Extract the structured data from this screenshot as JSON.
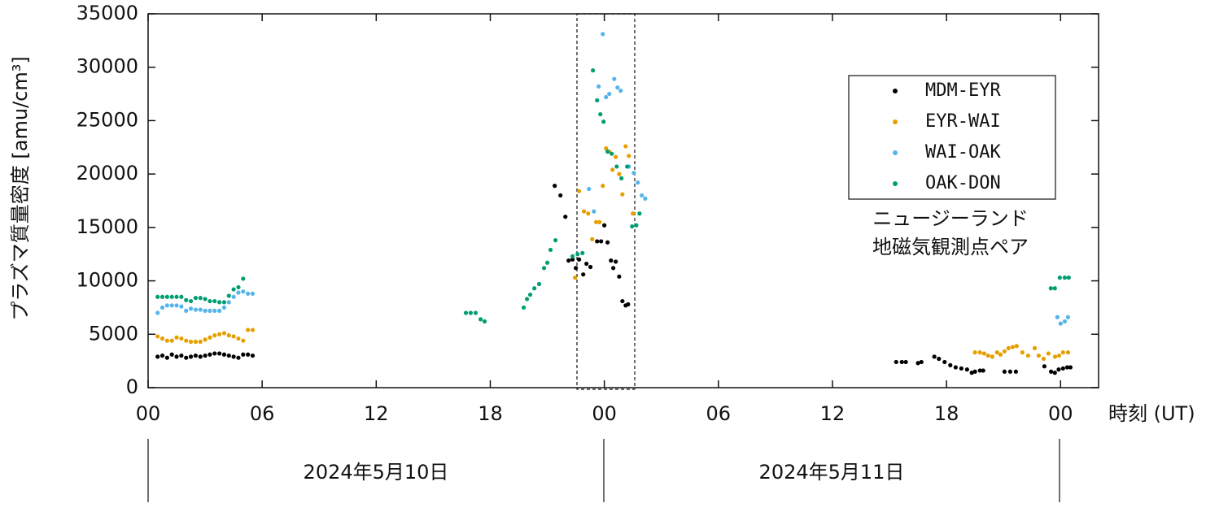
{
  "chart_data": {
    "type": "scatter",
    "y_label": "プラズマ質量密度 [amu/cm³]",
    "x_label": "時刻 (UT)",
    "date_labels": [
      "2024年5月10日",
      "2024年5月11日"
    ],
    "annotation_lines": [
      "ニュージーランド",
      "地磁気観測点ペア"
    ],
    "legend": "upper right",
    "xlim": [
      0,
      50
    ],
    "ylim": [
      0,
      35000
    ],
    "xticks": [
      {
        "value": 0,
        "label": "00"
      },
      {
        "value": 6,
        "label": "06"
      },
      {
        "value": 12,
        "label": "12"
      },
      {
        "value": 18,
        "label": "18"
      },
      {
        "value": 24,
        "label": "00"
      },
      {
        "value": 30,
        "label": "06"
      },
      {
        "value": 36,
        "label": "12"
      },
      {
        "value": 42,
        "label": "18"
      },
      {
        "value": 48,
        "label": "00"
      }
    ],
    "yticks": [
      0,
      5000,
      10000,
      15000,
      20000,
      25000,
      30000,
      35000
    ],
    "series": [
      {
        "name": "MDM-EYR",
        "color": "#000000",
        "x": [
          0.5,
          0.75,
          1,
          1.25,
          1.5,
          1.75,
          2,
          2.25,
          2.5,
          2.75,
          3,
          3.25,
          3.5,
          3.75,
          4,
          4.25,
          4.5,
          4.75,
          5,
          5.25,
          5.5,
          21.39,
          21.69,
          21.95,
          22.12,
          22.33,
          22.5,
          22.67,
          22.89,
          23.06,
          23.27,
          23.62,
          23.83,
          24,
          24.17,
          24.35,
          24.47,
          24.6,
          24.78,
          24.95,
          25.12,
          25.25,
          39.35,
          39.65,
          39.86,
          40.5,
          40.68,
          41.36,
          41.6,
          41.9,
          42.2,
          42.48,
          42.78,
          43.08,
          43.33,
          43.5,
          43.76,
          43.93,
          45.05,
          45.35,
          45.65,
          47.15,
          47.5,
          47.7,
          47.9,
          48.13,
          48.35,
          48.52
        ],
        "values": [
          2900,
          3000,
          2800,
          3100,
          2900,
          3000,
          2800,
          2900,
          3000,
          2900,
          3000,
          3100,
          3200,
          3200,
          3100,
          3000,
          2900,
          2800,
          3100,
          3100,
          3000,
          18900,
          18000,
          16000,
          11900,
          12000,
          11200,
          12000,
          10600,
          11600,
          11300,
          13700,
          13700,
          15200,
          13600,
          11900,
          11200,
          11800,
          10400,
          8100,
          7700,
          7800,
          2400,
          2400,
          2400,
          2300,
          2400,
          2900,
          2700,
          2400,
          2100,
          1900,
          1800,
          1700,
          1400,
          1500,
          1600,
          1600,
          1500,
          1500,
          1500,
          2000,
          1500,
          1400,
          1700,
          1800,
          1900,
          1900
        ]
      },
      {
        "name": "EYR-WAI",
        "color": "#e69f00",
        "x": [
          0.5,
          0.75,
          1,
          1.25,
          1.5,
          1.75,
          2,
          2.25,
          2.5,
          2.75,
          3,
          3.25,
          3.5,
          3.75,
          4,
          4.25,
          4.5,
          4.75,
          5,
          5.25,
          5.5,
          22.46,
          22.67,
          22.93,
          23.15,
          23.36,
          23.57,
          23.75,
          23.92,
          24.09,
          24.26,
          24.43,
          24.6,
          24.78,
          24.95,
          25.12,
          25.29,
          25.5,
          43.5,
          43.76,
          43.98,
          44.19,
          44.41,
          44.66,
          44.84,
          45.05,
          45.26,
          45.48,
          45.69,
          45.99,
          46.29,
          46.64,
          46.85,
          47.11,
          47.36,
          47.71,
          47.92,
          48.13,
          48.39
        ],
        "values": [
          4800,
          4600,
          4400,
          4400,
          4700,
          4600,
          4400,
          4300,
          4300,
          4300,
          4500,
          4700,
          4900,
          5000,
          5100,
          4900,
          4800,
          4600,
          4400,
          5400,
          5400,
          10300,
          18400,
          16500,
          16300,
          13900,
          15500,
          15500,
          18900,
          22400,
          22100,
          20400,
          21600,
          20000,
          18100,
          22600,
          21700,
          16300,
          3300,
          3300,
          3200,
          3000,
          2900,
          3300,
          3100,
          3400,
          3700,
          3800,
          3900,
          3300,
          3000,
          3700,
          3000,
          2700,
          3200,
          2900,
          3000,
          3300,
          3300
        ]
      },
      {
        "name": "WAI-OAK",
        "color": "#56b4e9",
        "x": [
          0.5,
          0.75,
          1,
          1.25,
          1.5,
          1.75,
          2,
          2.25,
          2.5,
          2.75,
          3,
          3.25,
          3.5,
          3.75,
          4,
          4.25,
          4.5,
          4.75,
          5,
          5.25,
          5.5,
          23.19,
          23.45,
          23.7,
          23.92,
          24.09,
          24.26,
          24.52,
          24.69,
          24.86,
          25.29,
          25.55,
          25.76,
          25.97,
          26.15,
          47.83,
          48,
          48.22,
          48.39
        ],
        "values": [
          7000,
          7500,
          7700,
          7700,
          7700,
          7600,
          7200,
          7400,
          7300,
          7300,
          7200,
          7200,
          7200,
          7200,
          7500,
          8000,
          8500,
          8900,
          9000,
          8800,
          8800,
          18600,
          16500,
          28200,
          33100,
          27200,
          27500,
          28900,
          28100,
          27800,
          20700,
          20100,
          19200,
          18000,
          17700,
          6600,
          6000,
          6200,
          6600
        ]
      },
      {
        "name": "OAK-DON",
        "color": "#009e73",
        "x": [
          0.5,
          0.75,
          1,
          1.25,
          1.5,
          1.75,
          2,
          2.25,
          2.5,
          2.75,
          3,
          3.25,
          3.5,
          3.75,
          4,
          4.25,
          4.5,
          4.75,
          5,
          16.72,
          16.97,
          17.23,
          17.49,
          17.7,
          19.76,
          19.93,
          20.1,
          20.32,
          20.57,
          20.83,
          21,
          21.17,
          21.43,
          22.33,
          22.59,
          22.85,
          23.4,
          23.62,
          23.79,
          23.96,
          24.17,
          24.39,
          24.65,
          24.9,
          25.2,
          25.46,
          25.68,
          25.85,
          47.49,
          47.7,
          47.96,
          48.22,
          48.43
        ],
        "values": [
          8500,
          8500,
          8500,
          8500,
          8500,
          8500,
          8200,
          8100,
          8400,
          8400,
          8300,
          8100,
          8100,
          8000,
          8000,
          8600,
          9200,
          9400,
          10200,
          7000,
          7000,
          7000,
          6400,
          6200,
          7500,
          8300,
          8700,
          9300,
          9700,
          11200,
          11700,
          12900,
          13800,
          12300,
          12500,
          12600,
          29700,
          26900,
          25600,
          24900,
          22100,
          21900,
          20700,
          19600,
          20700,
          15100,
          15200,
          16300,
          9300,
          9300,
          10300,
          10300,
          10300
        ]
      }
    ]
  }
}
